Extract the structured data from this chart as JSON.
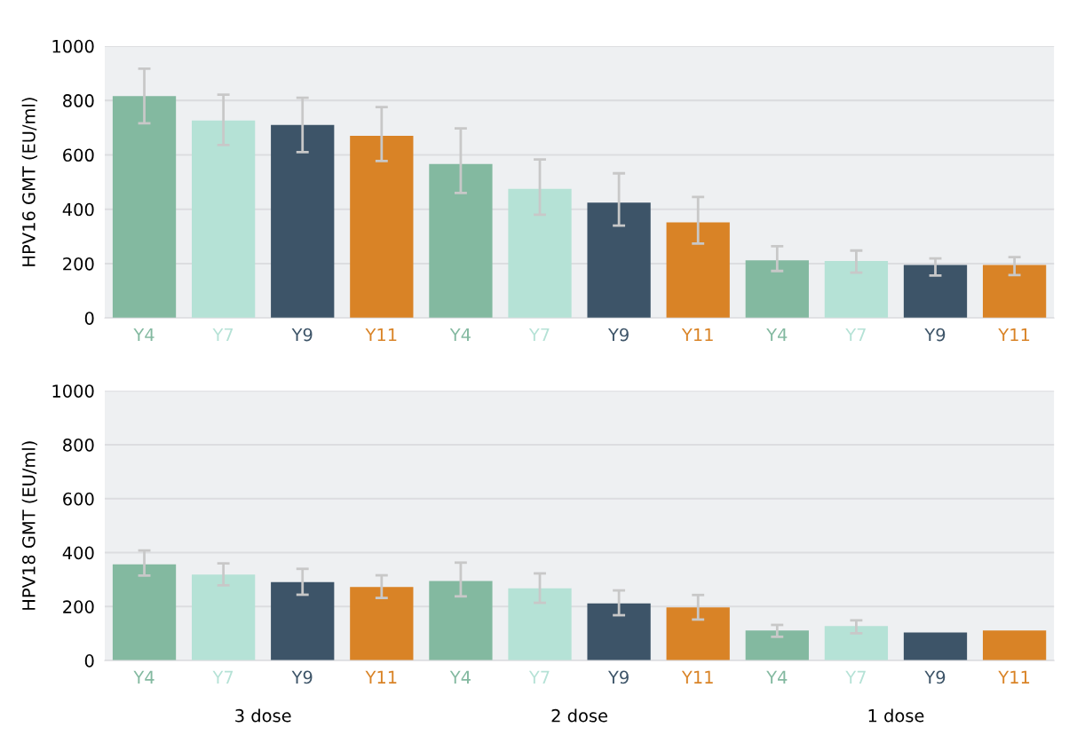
{
  "chart_data": [
    {
      "type": "bar",
      "ylabel": "HPV16 GMT (EU/ml)",
      "categories": [
        "Y4",
        "Y7",
        "Y9",
        "Y11",
        "Y4",
        "Y7",
        "Y9",
        "Y11",
        "Y4",
        "Y7",
        "Y9",
        "Y11"
      ],
      "values": [
        816,
        726,
        710,
        670,
        566,
        475,
        424,
        352,
        212,
        210,
        195,
        195
      ],
      "errors": [
        [
          716,
          917
        ],
        [
          636,
          821
        ],
        [
          610,
          810
        ],
        [
          577,
          776
        ],
        [
          460,
          697
        ],
        [
          380,
          583
        ],
        [
          340,
          532
        ],
        [
          274,
          445
        ],
        [
          173,
          264
        ],
        [
          167,
          248
        ],
        [
          156,
          219
        ],
        [
          158,
          224
        ]
      ],
      "colors": [
        "#83b9a0",
        "#b5e2d6",
        "#3d5468",
        "#d98326",
        "#83b9a0",
        "#b5e2d6",
        "#3d5468",
        "#d98326",
        "#83b9a0",
        "#b5e2d6",
        "#3d5468",
        "#d98326"
      ],
      "ylim": [
        0,
        1000
      ],
      "yticks": [
        0,
        200,
        400,
        600,
        800,
        1000
      ],
      "grid": "y"
    },
    {
      "type": "bar",
      "ylabel": "HPV18 GMT (EU/ml)",
      "categories": [
        "Y4",
        "Y7",
        "Y9",
        "Y11",
        "Y4",
        "Y7",
        "Y9",
        "Y11",
        "Y4",
        "Y7",
        "Y9",
        "Y11"
      ],
      "values": [
        357,
        319,
        291,
        273,
        295,
        268,
        212,
        197,
        111,
        128,
        104,
        111
      ],
      "errors": [
        [
          315,
          408
        ],
        [
          279,
          360
        ],
        [
          244,
          340
        ],
        [
          232,
          316
        ],
        [
          238,
          363
        ],
        [
          214,
          323
        ],
        [
          168,
          260
        ],
        [
          152,
          243
        ],
        [
          88,
          132
        ],
        [
          101,
          149
        ],
        null,
        null
      ],
      "colors": [
        "#83b9a0",
        "#b5e2d6",
        "#3d5468",
        "#d98326",
        "#83b9a0",
        "#b5e2d6",
        "#3d5468",
        "#d98326",
        "#83b9a0",
        "#b5e2d6",
        "#3d5468",
        "#d98326"
      ],
      "ylim": [
        0,
        1000
      ],
      "yticks": [
        0,
        200,
        400,
        600,
        800,
        1000
      ],
      "grid": "y",
      "annotations": [
        "3 dose",
        "2 dose",
        "1 dose"
      ]
    }
  ]
}
